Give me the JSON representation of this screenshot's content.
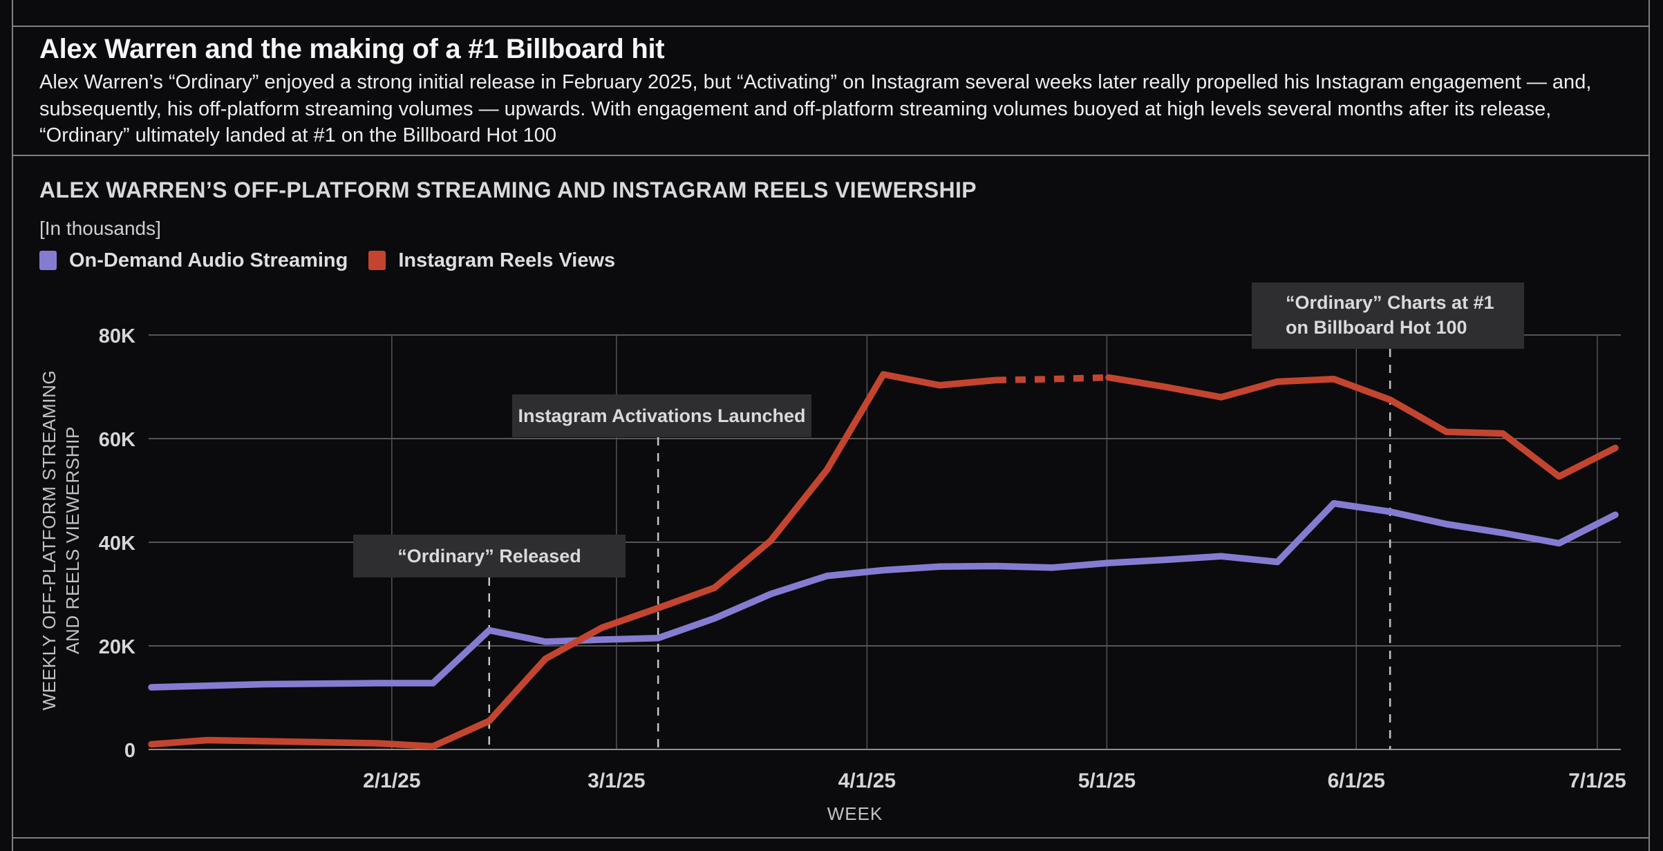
{
  "header": {
    "title": "Alex Warren and the making of a #1 Billboard hit",
    "description": "Alex Warren’s “Ordinary” enjoyed a strong initial release in February 2025, but “Activating” on Instagram several weeks later really propelled his Instagram engagement — and, subsequently, his off-platform streaming volumes — upwards. With engagement and off-platform streaming volumes buoyed at high levels several months after its release, “Ordinary” ultimately landed at #1 on the Billboard Hot 100"
  },
  "chart": {
    "title": "ALEX WARREN’S OFF-PLATFORM STREAMING AND INSTAGRAM REELS VIEWERSHIP",
    "units_note": "[In thousands]",
    "x_axis_title": "WEEK",
    "y_axis_title_line1": "WEEKLY OFF-PLATFORM STREAMING",
    "y_axis_title_line2": "AND REELS VIEWERSHIP"
  },
  "chart_data": {
    "type": "line",
    "title": "ALEX WARREN’S OFF-PLATFORM STREAMING AND INSTAGRAM REELS VIEWERSHIP",
    "units": "thousands",
    "xlabel": "WEEK",
    "ylabel": "WEEKLY OFF-PLATFORM STREAMING AND REELS VIEWERSHIP",
    "x_unit": "weekly points, index 0 through 26",
    "weeks_count": 27,
    "ylim_thousands": [
      0,
      80
    ],
    "grid": true,
    "legend_position": "top-left",
    "background_color": "#0b0b0d",
    "y_ticks": [
      {
        "label": "0",
        "value": 0
      },
      {
        "label": "20K",
        "value": 20
      },
      {
        "label": "40K",
        "value": 40
      },
      {
        "label": "60K",
        "value": 60
      },
      {
        "label": "80K",
        "value": 80
      }
    ],
    "x_ticks": [
      {
        "label": "2/1/25",
        "week_index": 4.27
      },
      {
        "label": "3/1/25",
        "week_index": 8.26
      },
      {
        "label": "4/1/25",
        "week_index": 12.71
      },
      {
        "label": "5/1/25",
        "week_index": 16.97
      },
      {
        "label": "6/1/25",
        "week_index": 21.4
      },
      {
        "label": "7/1/25",
        "week_index": 25.68
      }
    ],
    "series": [
      {
        "name": "On-Demand Audio Streaming",
        "color": "#857cd2",
        "style": "solid",
        "values_thousands": [
          12.0,
          12.3,
          12.6,
          12.7,
          12.8,
          12.8,
          23.0,
          20.8,
          21.2,
          21.5,
          25.3,
          30.0,
          33.5,
          34.6,
          35.3,
          35.4,
          35.1,
          36.0,
          36.6,
          37.3,
          36.2,
          47.5,
          45.9,
          43.5,
          41.8,
          39.8,
          45.3
        ]
      },
      {
        "name": "Instagram Reels Views",
        "color": "#c4452f",
        "style": "solid with dotted segment (estimated values)",
        "dotted_week_range": [
          15,
          17
        ],
        "values_thousands": [
          1.0,
          1.8,
          1.6,
          1.4,
          1.2,
          0.6,
          5.5,
          17.5,
          23.5,
          27.3,
          31.2,
          40.3,
          54.0,
          72.4,
          70.3,
          71.3,
          71.5,
          71.8,
          70.0,
          68.0,
          71.0,
          71.5,
          67.5,
          61.3,
          61.0,
          52.7,
          58.2
        ]
      }
    ],
    "annotations": [
      {
        "label": "“Ordinary” Released",
        "week_index": 6
      },
      {
        "label": "Instagram Activations Launched",
        "week_index": 9
      },
      {
        "label_line1": "“Ordinary” Charts at #1",
        "label_line2": "on Billboard Hot 100",
        "week_index": 22
      }
    ]
  }
}
